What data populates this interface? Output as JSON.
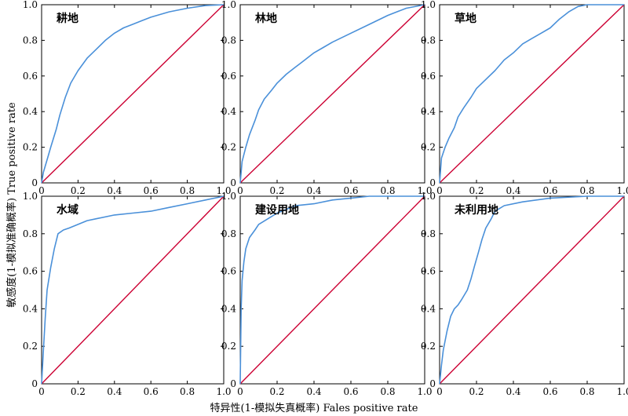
{
  "y_axis_label": "敏感度(1-模拟准确概率) True positive rate",
  "x_axis_label": "特异性(1-模拟失真概率) Fales positive rate",
  "colors": {
    "roc": "#4a90d9",
    "diagonal": "#cc0033",
    "axis": "#000000"
  },
  "chart_data": [
    {
      "type": "line",
      "title": "耕地",
      "xlim": [
        0,
        1.0
      ],
      "ylim": [
        0,
        1.0
      ],
      "x_ticks": [
        "0",
        "0.2",
        "0.4",
        "0.6",
        "0.8",
        "1.0"
      ],
      "y_ticks": [
        "0",
        "0.2",
        "0.4",
        "0.6",
        "0.8",
        "1.0"
      ],
      "roc": [
        [
          0,
          0
        ],
        [
          0.01,
          0.06
        ],
        [
          0.03,
          0.13
        ],
        [
          0.05,
          0.2
        ],
        [
          0.08,
          0.3
        ],
        [
          0.1,
          0.38
        ],
        [
          0.13,
          0.48
        ],
        [
          0.16,
          0.56
        ],
        [
          0.2,
          0.63
        ],
        [
          0.25,
          0.7
        ],
        [
          0.3,
          0.75
        ],
        [
          0.35,
          0.8
        ],
        [
          0.4,
          0.84
        ],
        [
          0.45,
          0.87
        ],
        [
          0.5,
          0.89
        ],
        [
          0.55,
          0.91
        ],
        [
          0.6,
          0.93
        ],
        [
          0.7,
          0.96
        ],
        [
          0.8,
          0.98
        ],
        [
          0.9,
          0.995
        ],
        [
          1.0,
          1.0
        ]
      ],
      "diagonal": [
        [
          0,
          0
        ],
        [
          1.0,
          1.0
        ]
      ]
    },
    {
      "type": "line",
      "title": "林地",
      "xlim": [
        0,
        1.0
      ],
      "ylim": [
        0,
        1.0
      ],
      "x_ticks": [
        "0",
        "0.2",
        "0.4",
        "0.6",
        "0.8",
        "1.0"
      ],
      "y_ticks": [
        "0",
        "0.2",
        "0.4",
        "0.6",
        "0.8",
        "1.0"
      ],
      "roc": [
        [
          0,
          0
        ],
        [
          0.01,
          0.12
        ],
        [
          0.03,
          0.2
        ],
        [
          0.05,
          0.27
        ],
        [
          0.08,
          0.35
        ],
        [
          0.1,
          0.41
        ],
        [
          0.13,
          0.47
        ],
        [
          0.17,
          0.52
        ],
        [
          0.2,
          0.56
        ],
        [
          0.25,
          0.61
        ],
        [
          0.3,
          0.65
        ],
        [
          0.35,
          0.69
        ],
        [
          0.4,
          0.73
        ],
        [
          0.45,
          0.76
        ],
        [
          0.5,
          0.79
        ],
        [
          0.6,
          0.84
        ],
        [
          0.7,
          0.89
        ],
        [
          0.8,
          0.94
        ],
        [
          0.9,
          0.98
        ],
        [
          1.0,
          1.0
        ]
      ],
      "diagonal": [
        [
          0,
          0
        ],
        [
          1.0,
          1.0
        ]
      ]
    },
    {
      "type": "line",
      "title": "草地",
      "xlim": [
        0,
        1.0
      ],
      "ylim": [
        0,
        1.0
      ],
      "x_ticks": [
        "0",
        "0.2",
        "0.4",
        "0.6",
        "0.8",
        "1.0"
      ],
      "y_ticks": [
        "0",
        "0.2",
        "0.4",
        "0.6",
        "0.8",
        "1.0"
      ],
      "roc": [
        [
          0,
          0
        ],
        [
          0.01,
          0.14
        ],
        [
          0.03,
          0.2
        ],
        [
          0.05,
          0.25
        ],
        [
          0.08,
          0.31
        ],
        [
          0.1,
          0.37
        ],
        [
          0.13,
          0.42
        ],
        [
          0.17,
          0.48
        ],
        [
          0.2,
          0.53
        ],
        [
          0.25,
          0.58
        ],
        [
          0.3,
          0.63
        ],
        [
          0.35,
          0.69
        ],
        [
          0.4,
          0.73
        ],
        [
          0.45,
          0.78
        ],
        [
          0.5,
          0.81
        ],
        [
          0.55,
          0.84
        ],
        [
          0.6,
          0.87
        ],
        [
          0.65,
          0.92
        ],
        [
          0.7,
          0.96
        ],
        [
          0.75,
          0.99
        ],
        [
          0.8,
          1.0
        ],
        [
          1.0,
          1.0
        ]
      ],
      "diagonal": [
        [
          0,
          0
        ],
        [
          1.0,
          1.0
        ]
      ]
    },
    {
      "type": "line",
      "title": "水域",
      "xlim": [
        0,
        1.0
      ],
      "ylim": [
        0,
        1.0
      ],
      "x_ticks": [
        "0",
        "0.2",
        "0.4",
        "0.6",
        "0.8",
        "1.0"
      ],
      "y_ticks": [
        "0",
        "0.2",
        "0.4",
        "0.6",
        "0.8",
        "1.0"
      ],
      "roc": [
        [
          0,
          0
        ],
        [
          0.01,
          0.18
        ],
        [
          0.02,
          0.35
        ],
        [
          0.03,
          0.5
        ],
        [
          0.05,
          0.62
        ],
        [
          0.07,
          0.72
        ],
        [
          0.09,
          0.8
        ],
        [
          0.12,
          0.82
        ],
        [
          0.15,
          0.83
        ],
        [
          0.2,
          0.85
        ],
        [
          0.25,
          0.87
        ],
        [
          0.3,
          0.88
        ],
        [
          0.4,
          0.9
        ],
        [
          0.5,
          0.91
        ],
        [
          0.6,
          0.92
        ],
        [
          0.7,
          0.94
        ],
        [
          0.8,
          0.96
        ],
        [
          0.9,
          0.98
        ],
        [
          1.0,
          1.0
        ]
      ],
      "diagonal": [
        [
          0,
          0
        ],
        [
          1.0,
          1.0
        ]
      ]
    },
    {
      "type": "line",
      "title": "建设用地",
      "xlim": [
        0,
        1.0
      ],
      "ylim": [
        0,
        1.0
      ],
      "x_ticks": [
        "0",
        "0.2",
        "0.4",
        "0.6",
        "0.8",
        "1.0"
      ],
      "y_ticks": [
        "0",
        "0.2",
        "0.4",
        "0.6",
        "0.8",
        "1.0"
      ],
      "roc": [
        [
          0,
          0
        ],
        [
          0.005,
          0.4
        ],
        [
          0.01,
          0.55
        ],
        [
          0.02,
          0.65
        ],
        [
          0.03,
          0.72
        ],
        [
          0.05,
          0.78
        ],
        [
          0.08,
          0.82
        ],
        [
          0.1,
          0.85
        ],
        [
          0.15,
          0.88
        ],
        [
          0.2,
          0.91
        ],
        [
          0.25,
          0.93
        ],
        [
          0.3,
          0.95
        ],
        [
          0.4,
          0.96
        ],
        [
          0.5,
          0.98
        ],
        [
          0.6,
          0.99
        ],
        [
          0.7,
          1.0
        ],
        [
          1.0,
          1.0
        ]
      ],
      "diagonal": [
        [
          0,
          0
        ],
        [
          1.0,
          1.0
        ]
      ]
    },
    {
      "type": "line",
      "title": "未利用地",
      "xlim": [
        0,
        1.0
      ],
      "ylim": [
        0,
        1.0
      ],
      "x_ticks": [
        "0",
        "0.2",
        "0.4",
        "0.6",
        "0.8",
        "1.0"
      ],
      "y_ticks": [
        "0",
        "0.2",
        "0.4",
        "0.6",
        "0.8",
        "1.0"
      ],
      "roc": [
        [
          0,
          0
        ],
        [
          0.01,
          0.1
        ],
        [
          0.02,
          0.18
        ],
        [
          0.04,
          0.28
        ],
        [
          0.06,
          0.36
        ],
        [
          0.08,
          0.4
        ],
        [
          0.1,
          0.42
        ],
        [
          0.12,
          0.45
        ],
        [
          0.15,
          0.5
        ],
        [
          0.17,
          0.56
        ],
        [
          0.19,
          0.63
        ],
        [
          0.21,
          0.7
        ],
        [
          0.23,
          0.77
        ],
        [
          0.25,
          0.83
        ],
        [
          0.28,
          0.88
        ],
        [
          0.3,
          0.92
        ],
        [
          0.35,
          0.95
        ],
        [
          0.45,
          0.97
        ],
        [
          0.6,
          0.99
        ],
        [
          0.8,
          1.0
        ],
        [
          1.0,
          1.0
        ]
      ],
      "diagonal": [
        [
          0,
          0
        ],
        [
          1.0,
          1.0
        ]
      ]
    }
  ]
}
